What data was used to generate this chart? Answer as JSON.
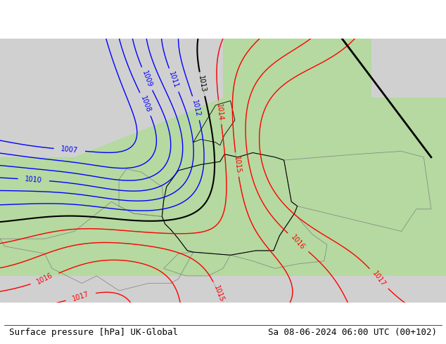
{
  "title_left": "Surface pressure [hPa] UK-Global",
  "title_right": "Sa 08-06-2024 06:00 UTC (00+102)",
  "bg_color_land_green": "#b5d9a0",
  "bg_color_land_gray": "#d0d0d0",
  "bg_color_sea": "#e8e8e8",
  "contour_blue_color": "#0000ff",
  "contour_black_color": "#000000",
  "contour_red_color": "#ff0000",
  "contour_gray_color": "#808080",
  "bottom_bar_color": "#ffffff",
  "title_fontsize": 9,
  "label_fontsize": 7
}
